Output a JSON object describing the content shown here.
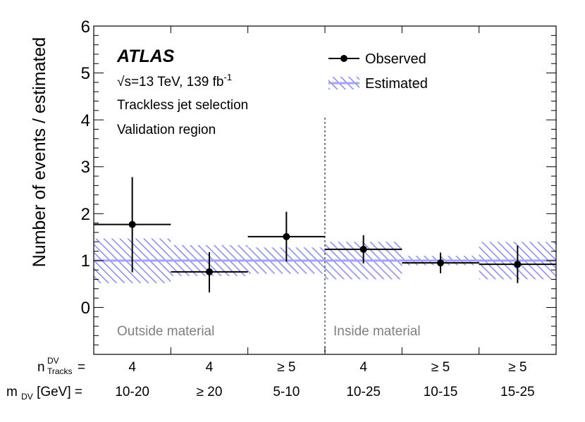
{
  "chart_data": {
    "type": "scatter",
    "ylabel": "Number of events / estimated",
    "ylim": [
      -1,
      6
    ],
    "yticks": [
      "0",
      "1",
      "2",
      "3",
      "4",
      "5",
      "6"
    ],
    "experiment": "ATLAS",
    "energy_sqrt": "√",
    "energy_text": "s=13 TeV, 139 fb",
    "energy_sup": "-1",
    "selection": "Trackless jet selection",
    "region": "Validation region",
    "legend": {
      "observed": "Observed",
      "estimated": "Estimated"
    },
    "annotations": {
      "left": "Outside material",
      "right": "Inside material"
    },
    "row_labels": {
      "n_main": "n",
      "n_sup": "DV",
      "n_sub": "Tracks",
      "n_eq": " =",
      "m_main": "m",
      "m_sub": "DV",
      "m_rest": " [GeV] ="
    },
    "bins": [
      {
        "n": "4",
        "m": "10-20",
        "observed": 1.77,
        "err_up": 1.01,
        "err_down": 1.02,
        "est_low": 0.52,
        "est_high": 1.47
      },
      {
        "n": "4",
        "m": "≥ 20",
        "observed": 0.76,
        "err_up": 0.42,
        "err_down": 0.44,
        "est_low": 0.67,
        "est_high": 1.33
      },
      {
        "n": "≥ 5",
        "m": "5-10",
        "observed": 1.51,
        "err_up": 0.53,
        "err_down": 0.53,
        "est_low": 0.72,
        "est_high": 1.28
      },
      {
        "n": "4",
        "m": "10-25",
        "observed": 1.24,
        "err_up": 0.3,
        "err_down": 0.3,
        "est_low": 0.6,
        "est_high": 1.4
      },
      {
        "n": "≥ 5",
        "m": "10-15",
        "observed": 0.95,
        "err_up": 0.22,
        "err_down": 0.22,
        "est_low": 0.9,
        "est_high": 1.1
      },
      {
        "n": "≥ 5",
        "m": "15-25",
        "observed": 0.92,
        "err_up": 0.4,
        "err_down": 0.4,
        "est_low": 0.6,
        "est_high": 1.4
      }
    ],
    "estimated_line": 1.0,
    "divider_after_bin": 3
  },
  "colors": {
    "band": "#8f8ff0",
    "band_line": "#a3a3f7",
    "divider": "#7f7f7f",
    "annotation": "#7f7f7f"
  }
}
